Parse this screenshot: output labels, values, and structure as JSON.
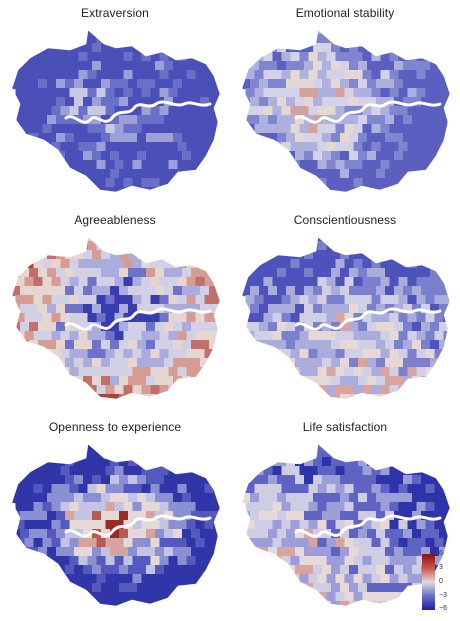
{
  "panels": [
    {
      "title": "Extraversion",
      "colors": [
        "#4b4fb8",
        "#6a6fc8",
        "#9c9fd8",
        "#c9c9e6",
        "#e2d8d8",
        "#d9a8a8",
        "#b85a52",
        "#8e1a1a"
      ]
    },
    {
      "title": "Emotional stability",
      "colors": [
        "#5a5fc0",
        "#8085cf",
        "#aeb0de",
        "#d4d2e6",
        "#e4d8d6",
        "#d4a09c",
        "#b0504a",
        "#8a1c1c"
      ]
    },
    {
      "title": "Agreeableness",
      "colors": [
        "#3a3db0",
        "#6e72c8",
        "#a9acdc",
        "#d2d0e4",
        "#e6d6d2",
        "#d69c92",
        "#c07068",
        "#a8443c"
      ]
    },
    {
      "title": "Conscientiousness",
      "colors": [
        "#4e52bb",
        "#7b80cc",
        "#aaaddc",
        "#d0cfe5",
        "#e5d8d6",
        "#d9a49d",
        "#c0675f",
        "#962a24"
      ]
    },
    {
      "title": "Openness to experience",
      "colors": [
        "#3035a8",
        "#5559bd",
        "#8b8fd3",
        "#c3c3e3",
        "#e5d9d7",
        "#d6a49e",
        "#b95a52",
        "#9a2a24"
      ]
    },
    {
      "title": "Life satisfaction",
      "colors": [
        "#2d33a8",
        "#5f64c4",
        "#9b9ed8",
        "#cfcde4",
        "#e6d9d7",
        "#d8a49d",
        "#c06860",
        "#a53a32"
      ]
    }
  ],
  "legend": {
    "ticks": [
      "6",
      "3",
      "0",
      "−3",
      "−6"
    ]
  }
}
